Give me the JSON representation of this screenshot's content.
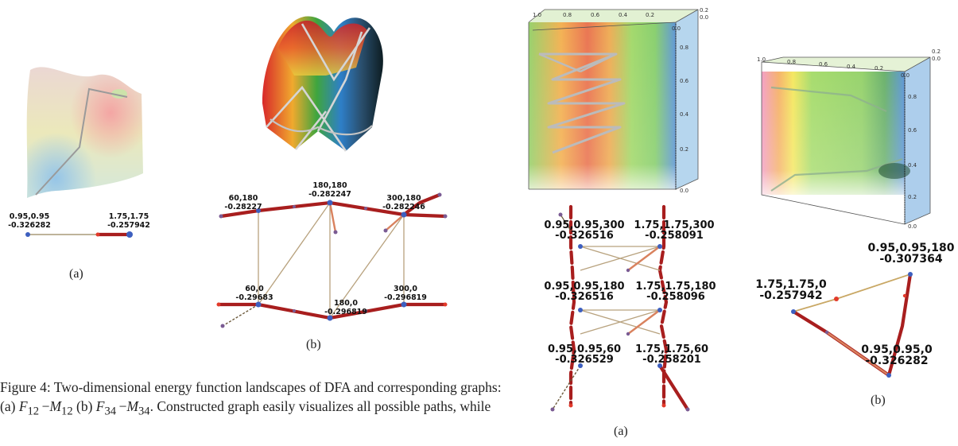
{
  "figure4": {
    "sublabel_a": "(a)",
    "sublabel_b": "(b)",
    "graph_a_nodes": [
      {
        "coords": "0.95,0.95",
        "energy": "-0.326282"
      },
      {
        "coords": "1.75,1.75",
        "energy": "-0.257942"
      }
    ],
    "graph_b_nodes": [
      {
        "coords": "60,180",
        "energy": "-0.28227"
      },
      {
        "coords": "180,180",
        "energy": "-0.282247"
      },
      {
        "coords": "300,180",
        "energy": "-0.282246"
      },
      {
        "coords": "60,0",
        "energy": "-0.29683"
      },
      {
        "coords": "180,0",
        "energy": "-0.296819"
      },
      {
        "coords": "300,0",
        "energy": "-0.296819"
      }
    ],
    "caption": {
      "prefix": "Figure 4: Two-dimensional energy function landscapes of DFA and corresponding graphs: (a) ",
      "f12": "F",
      "f12_sub": "12",
      "m12": "M",
      "m12_sub": "12",
      "mid": " (b) ",
      "f34": "F",
      "f34_sub": "34",
      "m34": "M",
      "m34_sub": "34",
      "suffix": ". Constructed graph easily visualizes all possible paths, while"
    }
  },
  "figure5": {
    "sublabel_a": "(a)",
    "sublabel_b": "(b)",
    "graph_a_nodes": [
      {
        "coords": "0.95,0.95,300",
        "energy": "-0.326516"
      },
      {
        "coords": "1.75,1.75,300",
        "energy": "-0.258091"
      },
      {
        "coords": "0.95,0.95,180",
        "energy": "-0.326516"
      },
      {
        "coords": "1.75,1.75,180",
        "energy": "-0.258096"
      },
      {
        "coords": "0.95,0.95,60",
        "energy": "-0.326529"
      },
      {
        "coords": "1.75,1.75,60",
        "energy": "-0.258201"
      }
    ],
    "graph_b_nodes": [
      {
        "coords": "0.95,0.95,180",
        "energy": "-0.307364"
      },
      {
        "coords": "1.75,1.75,0",
        "energy": "-0.257942"
      },
      {
        "coords": "0.95,0.95,0",
        "energy": "-0.326282"
      }
    ],
    "cube_ticks_top": [
      "1.0",
      "0.8",
      "0.6",
      "0.4",
      "0.2",
      "0.0"
    ],
    "cube_ticks_side": [
      "0.8",
      "0.6",
      "0.4",
      "0.2",
      "0.0"
    ],
    "cube_ticks_corner": [
      "0.2",
      "0.0"
    ]
  }
}
